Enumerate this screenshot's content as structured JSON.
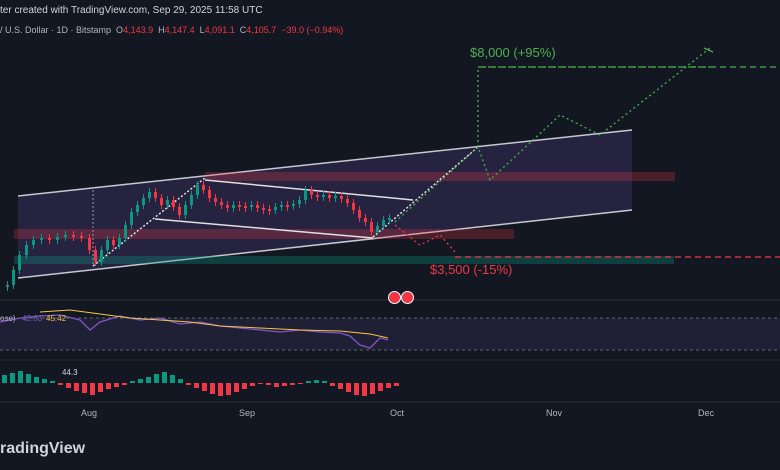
{
  "header": {
    "published": "ter created with TradingView.com, Sep 29, 2025 11:58 UTC"
  },
  "symbol": {
    "name": "/ U.S. Dollar · 1D · Bitstamp",
    "open_label": "O",
    "open": "4,143.9",
    "high_label": "H",
    "high": "4,147.4",
    "low_label": "L",
    "low": "4,091.1",
    "close_label": "C",
    "close": "4,105.7",
    "change": "−39.0 (−0.94%)"
  },
  "annotations": {
    "target_up": "$8,000 (+95%)",
    "target_down": "$3,500 (-15%)"
  },
  "rsi": {
    "label": "ose)",
    "value1": "42.63",
    "value2": "45.42"
  },
  "macd": {
    "value": "44.3"
  },
  "xaxis": [
    "Aug",
    "Sep",
    "Oct",
    "Nov",
    "Dec"
  ],
  "brand": "radingView",
  "colors": {
    "background": "#131722",
    "up": "#089981",
    "down": "#f23645",
    "target_up": "#4caf50",
    "target_down": "#f23645",
    "channel": "#d1d4dc",
    "rsi": "#7e57c2",
    "rsi_ma": "#f7c548"
  }
}
